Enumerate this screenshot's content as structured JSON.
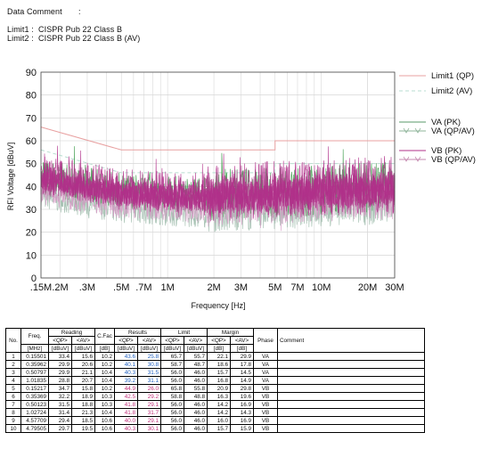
{
  "header": {
    "data_comment_label": "Data Comment",
    "data_comment_sep": ":",
    "limit1": "Limit1 :  CISPR Pub 22 Class B",
    "limit2": "Limit2 :  CISPR Pub 22 Class B (AV)"
  },
  "chart_data": {
    "type": "line",
    "ylabel": "RFI Voltage [dBuV]",
    "xlabel": "Frequency [Hz]",
    "xscale": "log",
    "xlim": [
      0.15,
      30
    ],
    "ylim": [
      0,
      90
    ],
    "y_ticks": [
      0,
      10,
      20,
      30,
      40,
      50,
      60,
      70,
      80,
      90
    ],
    "x_ticks": [
      {
        "v": 0.15,
        "label": ".15M"
      },
      {
        "v": 0.2,
        "label": ".2M"
      },
      {
        "v": 0.3,
        "label": ".3M"
      },
      {
        "v": 0.5,
        "label": ".5M"
      },
      {
        "v": 0.7,
        "label": ".7M"
      },
      {
        "v": 1,
        "label": "1M"
      },
      {
        "v": 2,
        "label": "2M"
      },
      {
        "v": 3,
        "label": "3M"
      },
      {
        "v": 5,
        "label": "5M"
      },
      {
        "v": 7,
        "label": "7M"
      },
      {
        "v": 10,
        "label": "10M"
      },
      {
        "v": 20,
        "label": "20M"
      },
      {
        "v": 30,
        "label": "30M"
      }
    ],
    "grid": true,
    "legend": [
      "Limit1 (QP)",
      "Limit2 (AV)",
      "VA (PK)",
      "VA (QP/AV)",
      "VB (PK)",
      "VB (QP/AV)"
    ],
    "limits": [
      {
        "name": "Limit1 (QP)",
        "color": "#e8a0a0",
        "x": [
          0.15,
          0.5,
          0.5,
          5,
          5,
          30
        ],
        "y": [
          66,
          56,
          56,
          56,
          60,
          60
        ]
      },
      {
        "name": "Limit2 (AV)",
        "color": "#b8ddd0",
        "x": [
          0.15,
          0.5,
          0.5,
          5,
          5,
          30
        ],
        "y": [
          56,
          46,
          46,
          46,
          50,
          50
        ]
      }
    ],
    "series_colors": {
      "VA": "#3a9a48",
      "VB": "#b0308a"
    }
  },
  "table": {
    "headers": {
      "no": "No.",
      "freq": "Freq.",
      "reading": "Reading",
      "cfac": "C.Fac",
      "results": "Results",
      "limit": "Limit",
      "margin": "Margin",
      "phase": "Phase",
      "comment": "Comment",
      "qp": "<QP>",
      "av": "<AV>",
      "mhz": "[MHz]",
      "dbuv": "[dBuV]",
      "db": "[dB]"
    },
    "rows": [
      {
        "no": "1",
        "freq": "0.15501",
        "r_qp": "33.4",
        "r_av": "15.6",
        "cfac": "10.2",
        "res_qp": "43.6",
        "res_av": "25.8",
        "lim_qp": "65.7",
        "lim_av": "55.7",
        "m_qp": "22.1",
        "m_av": "29.9",
        "phase": "VA"
      },
      {
        "no": "2",
        "freq": "0.35962",
        "r_qp": "29.9",
        "r_av": "20.6",
        "cfac": "10.2",
        "res_qp": "40.1",
        "res_av": "30.8",
        "lim_qp": "58.7",
        "lim_av": "48.7",
        "m_qp": "18.6",
        "m_av": "17.8",
        "phase": "VA"
      },
      {
        "no": "3",
        "freq": "0.50797",
        "r_qp": "29.9",
        "r_av": "21.1",
        "cfac": "10.4",
        "res_qp": "40.3",
        "res_av": "31.5",
        "lim_qp": "56.0",
        "lim_av": "46.0",
        "m_qp": "15.7",
        "m_av": "14.5",
        "phase": "VA"
      },
      {
        "no": "4",
        "freq": "1.01835",
        "r_qp": "28.8",
        "r_av": "20.7",
        "cfac": "10.4",
        "res_qp": "39.2",
        "res_av": "31.1",
        "lim_qp": "56.0",
        "lim_av": "46.0",
        "m_qp": "16.8",
        "m_av": "14.9",
        "phase": "VA"
      },
      {
        "no": "5",
        "freq": "0.15217",
        "r_qp": "34.7",
        "r_av": "15.8",
        "cfac": "10.2",
        "res_qp": "44.9",
        "res_av": "26.0",
        "lim_qp": "65.8",
        "lim_av": "55.8",
        "m_qp": "20.9",
        "m_av": "29.8",
        "phase": "VB"
      },
      {
        "no": "6",
        "freq": "0.35369",
        "r_qp": "32.2",
        "r_av": "18.9",
        "cfac": "10.3",
        "res_qp": "42.5",
        "res_av": "29.2",
        "lim_qp": "58.8",
        "lim_av": "48.8",
        "m_qp": "16.3",
        "m_av": "19.6",
        "phase": "VB"
      },
      {
        "no": "7",
        "freq": "0.50123",
        "r_qp": "31.5",
        "r_av": "18.8",
        "cfac": "10.3",
        "res_qp": "41.8",
        "res_av": "29.1",
        "lim_qp": "56.0",
        "lim_av": "46.0",
        "m_qp": "14.2",
        "m_av": "16.9",
        "phase": "VB"
      },
      {
        "no": "8",
        "freq": "1.02724",
        "r_qp": "31.4",
        "r_av": "21.3",
        "cfac": "10.4",
        "res_qp": "41.8",
        "res_av": "31.7",
        "lim_qp": "56.0",
        "lim_av": "46.0",
        "m_qp": "14.2",
        "m_av": "14.3",
        "phase": "VB"
      },
      {
        "no": "9",
        "freq": "4.57709",
        "r_qp": "29.4",
        "r_av": "18.5",
        "cfac": "10.6",
        "res_qp": "40.0",
        "res_av": "29.1",
        "lim_qp": "56.0",
        "lim_av": "46.0",
        "m_qp": "16.0",
        "m_av": "16.9",
        "phase": "VB"
      },
      {
        "no": "10",
        "freq": "4.79505",
        "r_qp": "29.7",
        "r_av": "19.5",
        "cfac": "10.6",
        "res_qp": "40.3",
        "res_av": "30.1",
        "lim_qp": "56.0",
        "lim_av": "46.0",
        "m_qp": "15.7",
        "m_av": "15.9",
        "phase": "VB"
      }
    ]
  }
}
